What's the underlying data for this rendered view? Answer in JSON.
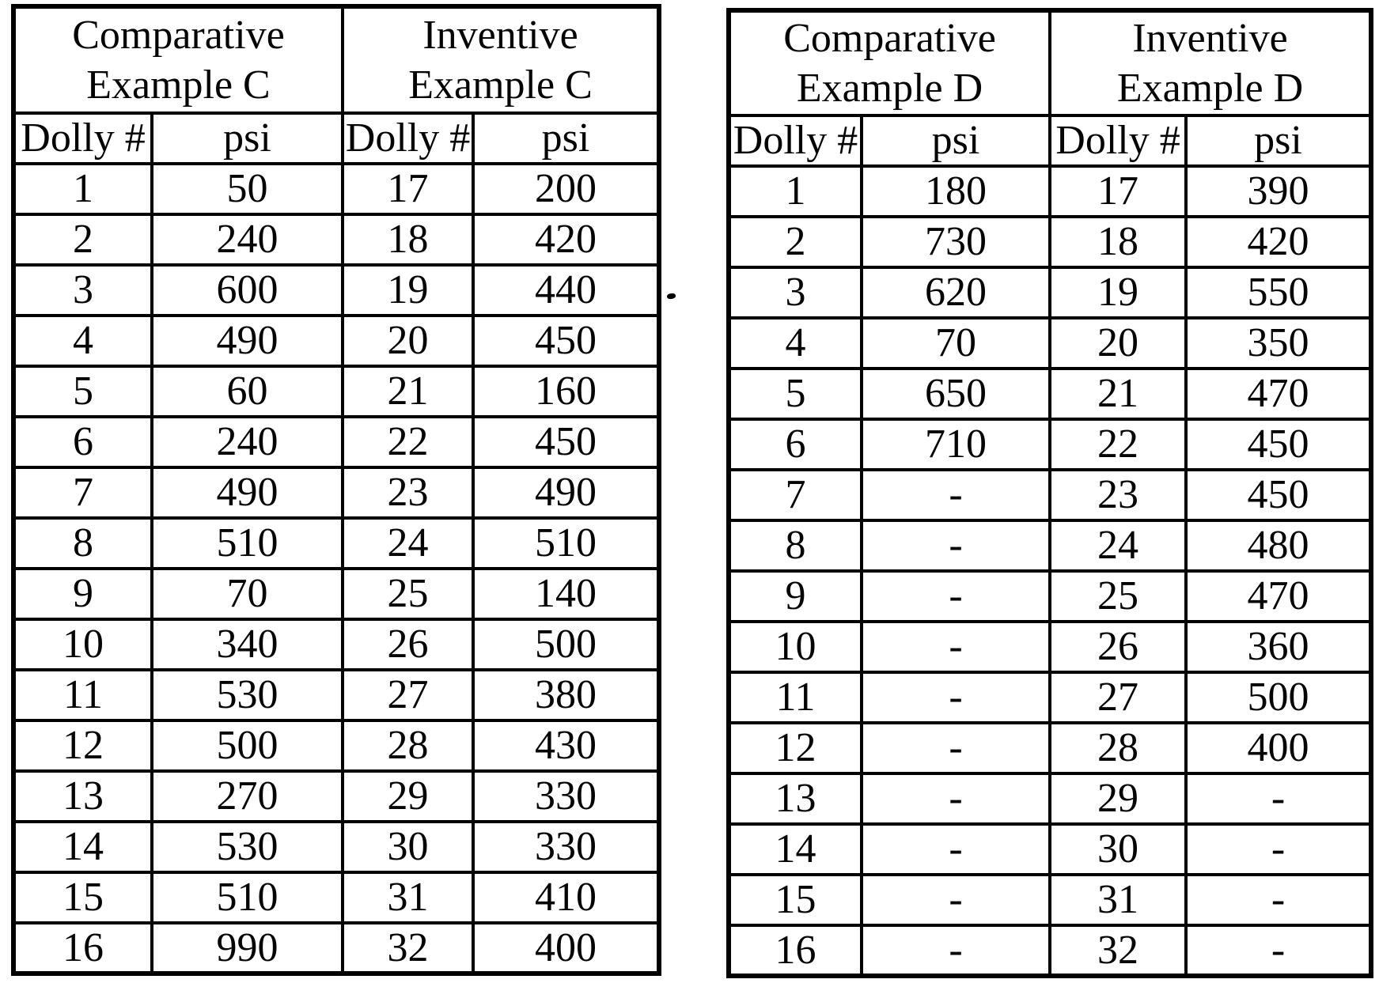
{
  "page": {
    "background": "#ffffff",
    "ink_color": "#040404"
  },
  "tables": [
    {
      "id": "example-c",
      "groups": [
        {
          "line1": "Comparative",
          "line2": "Example C"
        },
        {
          "line1": "Inventive",
          "line2": "Example C"
        }
      ],
      "columns": [
        "Dolly #",
        "psi",
        "Dolly #",
        "psi"
      ],
      "rows": [
        [
          "1",
          "50",
          "17",
          "200"
        ],
        [
          "2",
          "240",
          "18",
          "420"
        ],
        [
          "3",
          "600",
          "19",
          "440"
        ],
        [
          "4",
          "490",
          "20",
          "450"
        ],
        [
          "5",
          "60",
          "21",
          "160"
        ],
        [
          "6",
          "240",
          "22",
          "450"
        ],
        [
          "7",
          "490",
          "23",
          "490"
        ],
        [
          "8",
          "510",
          "24",
          "510"
        ],
        [
          "9",
          "70",
          "25",
          "140"
        ],
        [
          "10",
          "340",
          "26",
          "500"
        ],
        [
          "11",
          "530",
          "27",
          "380"
        ],
        [
          "12",
          "500",
          "28",
          "430"
        ],
        [
          "13",
          "270",
          "29",
          "330"
        ],
        [
          "14",
          "530",
          "30",
          "330"
        ],
        [
          "15",
          "510",
          "31",
          "410"
        ],
        [
          "16",
          "990",
          "32",
          "400"
        ]
      ]
    },
    {
      "id": "example-d",
      "groups": [
        {
          "line1": "Comparative",
          "line2": "Example D"
        },
        {
          "line1": "Inventive",
          "line2": "Example D"
        }
      ],
      "columns": [
        "Dolly #",
        "psi",
        "Dolly #",
        "psi"
      ],
      "rows": [
        [
          "1",
          "180",
          "17",
          "390"
        ],
        [
          "2",
          "730",
          "18",
          "420"
        ],
        [
          "3",
          "620",
          "19",
          "550"
        ],
        [
          "4",
          "70",
          "20",
          "350"
        ],
        [
          "5",
          "650",
          "21",
          "470"
        ],
        [
          "6",
          "710",
          "22",
          "450"
        ],
        [
          "7",
          "-",
          "23",
          "450"
        ],
        [
          "8",
          "-",
          "24",
          "480"
        ],
        [
          "9",
          "-",
          "25",
          "470"
        ],
        [
          "10",
          "-",
          "26",
          "360"
        ],
        [
          "11",
          "-",
          "27",
          "500"
        ],
        [
          "12",
          "-",
          "28",
          "400"
        ],
        [
          "13",
          "-",
          "29",
          "-"
        ],
        [
          "14",
          "-",
          "30",
          "-"
        ],
        [
          "15",
          "-",
          "31",
          "-"
        ],
        [
          "16",
          "-",
          "32",
          "-"
        ]
      ]
    }
  ]
}
